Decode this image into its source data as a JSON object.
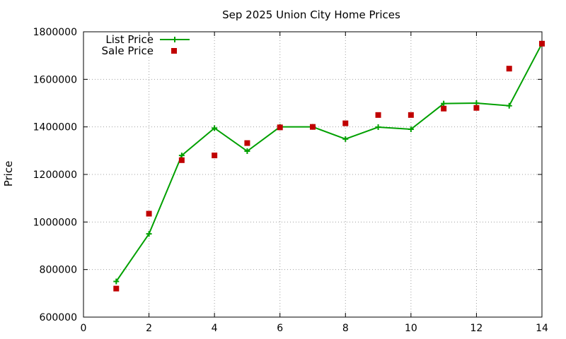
{
  "chart_data": {
    "type": "line",
    "title": "Sep 2025 Union City Home Prices",
    "xlabel": "",
    "ylabel": "Price",
    "xlim": [
      0,
      14
    ],
    "ylim": [
      600000,
      1800000
    ],
    "xticks": [
      0,
      2,
      4,
      6,
      8,
      10,
      12,
      14
    ],
    "yticks": [
      600000,
      800000,
      1000000,
      1200000,
      1400000,
      1600000,
      1800000
    ],
    "grid": true,
    "legend_position": "top-left",
    "series": [
      {
        "name": "List Price",
        "style": "line-with-plus-markers",
        "color": "#00a000",
        "x": [
          1,
          2,
          3,
          4,
          5,
          6,
          7,
          8,
          9,
          10,
          11,
          12,
          13,
          14
        ],
        "y": [
          750000,
          950000,
          1280000,
          1395000,
          1298000,
          1400000,
          1400000,
          1349000,
          1399000,
          1390000,
          1498000,
          1500000,
          1489000,
          1750000
        ]
      },
      {
        "name": "Sale Price",
        "style": "square-markers",
        "color": "#c00000",
        "x": [
          1,
          2,
          3,
          4,
          5,
          6,
          7,
          8,
          9,
          10,
          11,
          12,
          13,
          14
        ],
        "y": [
          720000,
          1035000,
          1260000,
          1280000,
          1332000,
          1398000,
          1400000,
          1415000,
          1450000,
          1450000,
          1477000,
          1480000,
          1645000,
          1750000
        ]
      }
    ]
  }
}
